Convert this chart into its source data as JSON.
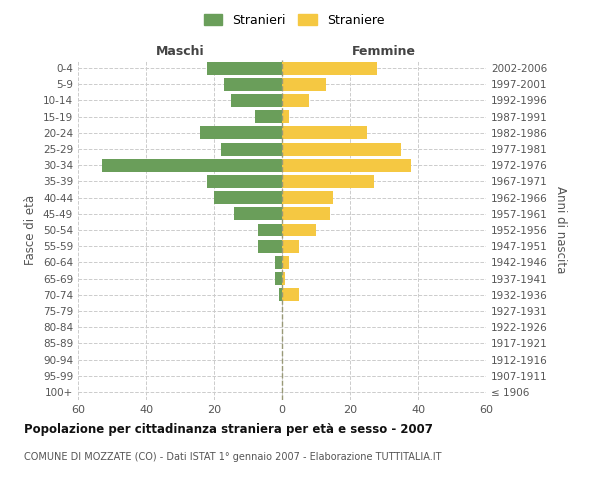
{
  "age_groups": [
    "100+",
    "95-99",
    "90-94",
    "85-89",
    "80-84",
    "75-79",
    "70-74",
    "65-69",
    "60-64",
    "55-59",
    "50-54",
    "45-49",
    "40-44",
    "35-39",
    "30-34",
    "25-29",
    "20-24",
    "15-19",
    "10-14",
    "5-9",
    "0-4"
  ],
  "birth_years": [
    "≤ 1906",
    "1907-1911",
    "1912-1916",
    "1917-1921",
    "1922-1926",
    "1927-1931",
    "1932-1936",
    "1937-1941",
    "1942-1946",
    "1947-1951",
    "1952-1956",
    "1957-1961",
    "1962-1966",
    "1967-1971",
    "1972-1976",
    "1977-1981",
    "1982-1986",
    "1987-1991",
    "1992-1996",
    "1997-2001",
    "2002-2006"
  ],
  "males": [
    0,
    0,
    0,
    0,
    0,
    0,
    1,
    2,
    2,
    7,
    7,
    14,
    20,
    22,
    53,
    18,
    24,
    8,
    15,
    17,
    22
  ],
  "females": [
    0,
    0,
    0,
    0,
    0,
    0,
    5,
    1,
    2,
    5,
    10,
    14,
    15,
    27,
    38,
    35,
    25,
    2,
    8,
    13,
    28
  ],
  "male_color": "#6a9e5a",
  "female_color": "#f5c842",
  "title": "Popolazione per cittadinanza straniera per età e sesso - 2007",
  "subtitle": "COMUNE DI MOZZATE (CO) - Dati ISTAT 1° gennaio 2007 - Elaborazione TUTTITALIA.IT",
  "xlabel_left": "Maschi",
  "xlabel_right": "Femmine",
  "ylabel_left": "Fasce di età",
  "ylabel_right": "Anni di nascita",
  "legend_male": "Stranieri",
  "legend_female": "Straniere",
  "xlim": 60,
  "background_color": "#ffffff",
  "grid_color": "#cccccc",
  "bar_height": 0.8
}
